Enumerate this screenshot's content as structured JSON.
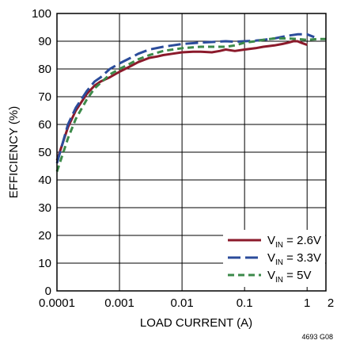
{
  "chart_data": {
    "type": "line",
    "title": "",
    "xlabel": "LOAD CURRENT (A)",
    "ylabel": "EFFICIENCY (%)",
    "xscale": "log",
    "xlim": [
      0.0001,
      2
    ],
    "ylim": [
      0,
      100
    ],
    "grid": true,
    "legend_position": "bottom-right",
    "x_ticks": [
      {
        "value": 0.0001,
        "label": "0.0001"
      },
      {
        "value": 0.001,
        "label": "0.001"
      },
      {
        "value": 0.01,
        "label": "0.01"
      },
      {
        "value": 0.1,
        "label": "0.1"
      },
      {
        "value": 1,
        "label": "1"
      },
      {
        "value": 2,
        "label": "2"
      }
    ],
    "y_ticks": [
      {
        "value": 0,
        "label": "0"
      },
      {
        "value": 10,
        "label": "10"
      },
      {
        "value": 20,
        "label": "20"
      },
      {
        "value": 30,
        "label": "30"
      },
      {
        "value": 40,
        "label": "40"
      },
      {
        "value": 50,
        "label": "50"
      },
      {
        "value": 60,
        "label": "60"
      },
      {
        "value": 70,
        "label": "70"
      },
      {
        "value": 80,
        "label": "80"
      },
      {
        "value": 90,
        "label": "90"
      },
      {
        "value": 100,
        "label": "100"
      }
    ],
    "series": [
      {
        "name_main": "V",
        "name_sub": "IN",
        "name_rest": " = 2.6V",
        "color": "#8b1a2b",
        "dash": "solid",
        "points": [
          [
            0.0001,
            47
          ],
          [
            0.00015,
            59
          ],
          [
            0.0002,
            65
          ],
          [
            0.0003,
            71
          ],
          [
            0.0004,
            74
          ],
          [
            0.0005,
            75.5
          ],
          [
            0.0007,
            77
          ],
          [
            0.001,
            79
          ],
          [
            0.0015,
            81
          ],
          [
            0.002,
            82.5
          ],
          [
            0.003,
            84
          ],
          [
            0.004,
            84.5
          ],
          [
            0.005,
            85
          ],
          [
            0.007,
            85.5
          ],
          [
            0.01,
            86
          ],
          [
            0.015,
            86.2
          ],
          [
            0.02,
            86.2
          ],
          [
            0.03,
            86
          ],
          [
            0.04,
            86.5
          ],
          [
            0.05,
            87
          ],
          [
            0.07,
            86.5
          ],
          [
            0.1,
            87
          ],
          [
            0.15,
            87.5
          ],
          [
            0.2,
            88
          ],
          [
            0.3,
            88.5
          ],
          [
            0.4,
            89
          ],
          [
            0.5,
            89.5
          ],
          [
            0.6,
            90
          ],
          [
            0.7,
            90
          ],
          [
            0.8,
            89.5
          ],
          [
            1.0,
            88.7
          ]
        ]
      },
      {
        "name_main": "V",
        "name_sub": "IN",
        "name_rest": " = 3.3V",
        "color": "#2b4c9b",
        "dash": "long-dash",
        "points": [
          [
            0.0001,
            46
          ],
          [
            0.00015,
            60
          ],
          [
            0.0002,
            66
          ],
          [
            0.0003,
            72
          ],
          [
            0.0004,
            75.5
          ],
          [
            0.0005,
            77
          ],
          [
            0.0007,
            80
          ],
          [
            0.001,
            82
          ],
          [
            0.0015,
            84
          ],
          [
            0.002,
            85.5
          ],
          [
            0.003,
            87
          ],
          [
            0.005,
            88
          ],
          [
            0.007,
            88.5
          ],
          [
            0.01,
            89
          ],
          [
            0.02,
            89.5
          ],
          [
            0.05,
            90
          ],
          [
            0.07,
            89.8
          ],
          [
            0.1,
            90
          ],
          [
            0.15,
            90.2
          ],
          [
            0.2,
            90.5
          ],
          [
            0.3,
            91
          ],
          [
            0.5,
            92
          ],
          [
            0.7,
            92.5
          ],
          [
            1.0,
            92.5
          ],
          [
            1.3,
            91.5
          ]
        ]
      },
      {
        "name_main": "V",
        "name_sub": "IN",
        "name_rest": " = 5V",
        "color": "#3c8a4a",
        "dash": "short-dash",
        "points": [
          [
            0.0001,
            43
          ],
          [
            0.00015,
            55
          ],
          [
            0.0002,
            62
          ],
          [
            0.0003,
            69
          ],
          [
            0.0004,
            73
          ],
          [
            0.0005,
            75
          ],
          [
            0.0007,
            78
          ],
          [
            0.001,
            80
          ],
          [
            0.0015,
            82
          ],
          [
            0.002,
            83.5
          ],
          [
            0.003,
            85
          ],
          [
            0.005,
            86.5
          ],
          [
            0.01,
            87.5
          ],
          [
            0.02,
            88
          ],
          [
            0.05,
            88
          ],
          [
            0.07,
            88.5
          ],
          [
            0.1,
            89.5
          ],
          [
            0.15,
            90
          ],
          [
            0.2,
            90.5
          ],
          [
            0.3,
            91
          ],
          [
            0.5,
            91
          ],
          [
            0.7,
            90.8
          ],
          [
            1.0,
            90.5
          ],
          [
            1.5,
            90.8
          ],
          [
            2,
            90.8
          ]
        ]
      }
    ]
  },
  "figure_id": "4693 G08"
}
